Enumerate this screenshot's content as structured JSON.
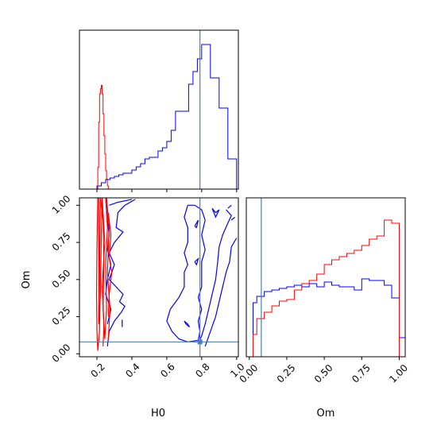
{
  "chart_data": {
    "type": "corner",
    "parameters": [
      "H0",
      "Om"
    ],
    "truths": {
      "H0": 0.79,
      "Om": 0.08
    },
    "truth_color": "#4682b4",
    "series": [
      {
        "name": "",
        "color": "#ff0000"
      },
      {
        "name": "",
        "color": "#0000ff"
      }
    ],
    "panels": {
      "h0_hist": {
        "xlim": [
          0.1,
          1.01
        ],
        "x_ticks": [
          0.2,
          0.4,
          0.6,
          0.8,
          1.0
        ],
        "red": {
          "edges": [
            0.2,
            0.205,
            0.21,
            0.215,
            0.22,
            0.225,
            0.23,
            0.235,
            0.24,
            0.245,
            0.25,
            0.255,
            0.26,
            0.265
          ],
          "values": [
            0.0,
            0.13,
            0.4,
            0.57,
            0.6,
            0.62,
            0.57,
            0.45,
            0.32,
            0.21,
            0.11,
            0.06,
            0.02
          ]
        },
        "blue": {
          "edges": [
            0.1,
            0.125,
            0.15,
            0.175,
            0.2,
            0.225,
            0.25,
            0.275,
            0.3,
            0.325,
            0.35,
            0.375,
            0.4,
            0.425,
            0.45,
            0.475,
            0.5,
            0.525,
            0.55,
            0.575,
            0.6,
            0.625,
            0.65,
            0.675,
            0.7,
            0.725,
            0.75,
            0.775,
            0.8,
            0.825,
            0.85,
            0.875,
            0.9,
            0.925,
            0.95,
            0.975,
            1.0
          ],
          "values": [
            0.0,
            0.0,
            0.0,
            0.0,
            0.02,
            0.04,
            0.06,
            0.07,
            0.08,
            0.09,
            0.1,
            0.1,
            0.12,
            0.14,
            0.16,
            0.19,
            0.2,
            0.2,
            0.24,
            0.26,
            0.3,
            0.37,
            0.49,
            0.49,
            0.49,
            0.66,
            0.74,
            0.82,
            0.91,
            0.91,
            0.7,
            0.7,
            0.51,
            0.51,
            0.19,
            0.19
          ]
        }
      },
      "om_hist": {
        "xlim": [
          -0.02,
          1.04
        ],
        "x_ticks": [
          0.0,
          0.25,
          0.5,
          0.75,
          1.0
        ],
        "tick_labels": [
          "0.00",
          "0.25",
          "0.50",
          "0.75",
          "1.00"
        ],
        "red": {
          "edges": [
            0.0,
            0.025,
            0.05,
            0.1,
            0.15,
            0.2,
            0.25,
            0.3,
            0.35,
            0.4,
            0.45,
            0.5,
            0.55,
            0.6,
            0.65,
            0.7,
            0.75,
            0.8,
            0.85,
            0.9,
            0.95,
            1.0
          ],
          "values": [
            0.0,
            0.14,
            0.24,
            0.28,
            0.32,
            0.35,
            0.36,
            0.42,
            0.46,
            0.48,
            0.52,
            0.58,
            0.61,
            0.63,
            0.65,
            0.67,
            0.7,
            0.74,
            0.76,
            0.86,
            0.84
          ]
        },
        "blue": {
          "edges": [
            0.0,
            0.025,
            0.05,
            0.1,
            0.15,
            0.2,
            0.25,
            0.3,
            0.35,
            0.4,
            0.45,
            0.5,
            0.55,
            0.6,
            0.65,
            0.7,
            0.75,
            0.8,
            0.85,
            0.9,
            0.95,
            1.0,
            1.04
          ],
          "values": [
            0.0,
            0.34,
            0.38,
            0.41,
            0.42,
            0.43,
            0.44,
            0.45,
            0.44,
            0.46,
            0.44,
            0.47,
            0.45,
            0.44,
            0.44,
            0.42,
            0.49,
            0.48,
            0.48,
            0.45,
            0.37,
            0.12
          ]
        }
      },
      "joint": {
        "xlim": [
          0.1,
          1.01
        ],
        "ylim": [
          -0.02,
          1.05
        ],
        "x_ticks": [
          0.2,
          0.4,
          0.6,
          0.8,
          1.0
        ],
        "y_ticks": [
          0.0,
          0.25,
          0.5,
          0.75,
          1.0
        ],
        "y_tick_labels": [
          "0.00",
          "0.25",
          "0.50",
          "0.75",
          "1.00"
        ],
        "red_contours": [
          [
            [
              0.205,
              1.05
            ],
            [
              0.2,
              0.7
            ],
            [
              0.198,
              0.4
            ],
            [
              0.2,
              0.15
            ],
            [
              0.205,
              0.02
            ],
            [
              0.215,
              0.15
            ],
            [
              0.218,
              0.4
            ],
            [
              0.216,
              0.7
            ],
            [
              0.22,
              1.05
            ]
          ],
          [
            [
              0.21,
              1.05
            ],
            [
              0.212,
              0.6
            ],
            [
              0.21,
              0.2
            ],
            [
              0.22,
              0.4
            ],
            [
              0.225,
              0.8
            ],
            [
              0.23,
              1.05
            ]
          ],
          [
            [
              0.22,
              1.05
            ],
            [
              0.235,
              0.9
            ],
            [
              0.24,
              0.6
            ],
            [
              0.235,
              0.3
            ],
            [
              0.245,
              0.1
            ],
            [
              0.255,
              0.3
            ],
            [
              0.25,
              0.6
            ],
            [
              0.26,
              0.85
            ],
            [
              0.25,
              1.05
            ]
          ],
          [
            [
              0.23,
              1.05
            ],
            [
              0.245,
              0.75
            ],
            [
              0.23,
              0.45
            ],
            [
              0.24,
              0.2
            ],
            [
              0.235,
              0.05
            ]
          ],
          [
            [
              0.255,
              1.05
            ],
            [
              0.27,
              0.85
            ],
            [
              0.26,
              0.55
            ],
            [
              0.275,
              0.3
            ],
            [
              0.265,
              0.1
            ]
          ],
          [
            [
              0.265,
              0.95
            ],
            [
              0.28,
              0.8
            ],
            [
              0.27,
              0.65
            ],
            [
              0.285,
              0.55
            ],
            [
              0.27,
              0.4
            ],
            [
              0.265,
              0.25
            ]
          ]
        ],
        "blue_contours": [
          [
            [
              0.27,
              1.0
            ],
            [
              0.32,
              1.02
            ],
            [
              0.4,
              1.04
            ]
          ],
          [
            [
              0.42,
              1.04
            ],
            [
              0.36,
              1.0
            ],
            [
              0.32,
              0.95
            ],
            [
              0.31,
              0.85
            ],
            [
              0.35,
              0.82
            ],
            [
              0.3,
              0.75
            ],
            [
              0.27,
              0.68
            ],
            [
              0.3,
              0.6
            ],
            [
              0.27,
              0.5
            ],
            [
              0.31,
              0.45
            ],
            [
              0.35,
              0.4
            ],
            [
              0.33,
              0.35
            ],
            [
              0.36,
              0.32
            ],
            [
              0.34,
              0.28
            ],
            [
              0.3,
              0.22
            ],
            [
              0.27,
              0.15
            ],
            [
              0.26,
              0.05
            ]
          ],
          [
            [
              0.25,
              1.05
            ],
            [
              0.26,
              0.9
            ],
            [
              0.27,
              0.8
            ],
            [
              0.26,
              0.7
            ],
            [
              0.28,
              0.6
            ],
            [
              0.26,
              0.5
            ],
            [
              0.25,
              0.4
            ],
            [
              0.28,
              0.3
            ],
            [
              0.26,
              0.2
            ]
          ],
          [
            [
              0.345,
              0.23
            ],
            [
              0.345,
              0.18
            ]
          ],
          [
            [
              0.72,
              1.0
            ],
            [
              0.7,
              0.92
            ],
            [
              0.72,
              0.85
            ],
            [
              0.72,
              0.75
            ],
            [
              0.7,
              0.68
            ],
            [
              0.72,
              0.6
            ],
            [
              0.7,
              0.55
            ],
            [
              0.7,
              0.45
            ],
            [
              0.67,
              0.38
            ],
            [
              0.62,
              0.3
            ],
            [
              0.6,
              0.22
            ],
            [
              0.63,
              0.15
            ],
            [
              0.67,
              0.1
            ],
            [
              0.72,
              0.08
            ],
            [
              0.78,
              0.09
            ],
            [
              0.79,
              0.15
            ],
            [
              0.78,
              0.22
            ],
            [
              0.8,
              0.3
            ],
            [
              0.78,
              0.38
            ],
            [
              0.8,
              0.45
            ],
            [
              0.8,
              0.55
            ],
            [
              0.8,
              0.62
            ],
            [
              0.82,
              0.7
            ],
            [
              0.8,
              0.8
            ],
            [
              0.82,
              0.9
            ],
            [
              0.8,
              0.97
            ],
            [
              0.76,
              1.0
            ],
            [
              0.72,
              1.0
            ]
          ],
          [
            [
              0.86,
              0.98
            ],
            [
              0.88,
              0.95
            ],
            [
              0.9,
              0.97
            ],
            [
              0.88,
              0.92
            ],
            [
              0.86,
              0.98
            ]
          ],
          [
            [
              0.76,
              0.86
            ],
            [
              0.78,
              0.9
            ],
            [
              0.77,
              0.85
            ],
            [
              0.76,
              0.86
            ]
          ],
          [
            [
              0.76,
              0.62
            ],
            [
              0.78,
              0.64
            ],
            [
              0.77,
              0.6
            ],
            [
              0.76,
              0.62
            ]
          ],
          [
            [
              0.7,
              0.22
            ],
            [
              0.72,
              0.2
            ],
            [
              0.73,
              0.18
            ],
            [
              0.71,
              0.2
            ],
            [
              0.7,
              0.22
            ]
          ],
          [
            [
              0.78,
              0.07
            ],
            [
              0.8,
              0.12
            ],
            [
              0.82,
              0.2
            ],
            [
              0.84,
              0.3
            ],
            [
              0.86,
              0.4
            ],
            [
              0.88,
              0.5
            ],
            [
              0.89,
              0.6
            ],
            [
              0.9,
              0.72
            ],
            [
              0.92,
              0.8
            ],
            [
              0.95,
              0.88
            ],
            [
              0.97,
              0.93
            ],
            [
              0.94,
              0.97
            ]
          ],
          [
            [
              0.82,
              0.05
            ],
            [
              0.85,
              0.15
            ],
            [
              0.88,
              0.25
            ],
            [
              0.9,
              0.35
            ],
            [
              0.92,
              0.45
            ],
            [
              0.94,
              0.55
            ],
            [
              0.96,
              0.62
            ],
            [
              0.97,
              0.72
            ],
            [
              1.0,
              0.78
            ]
          ],
          [
            [
              0.95,
              0.98
            ],
            [
              0.97,
              1.0
            ]
          ],
          [
            [
              0.97,
              0.9
            ],
            [
              0.99,
              0.92
            ]
          ]
        ],
        "truth_marker_size": 0.03
      }
    },
    "xlabels": {
      "h0": "H0",
      "om": "Om"
    },
    "ylabel": "Om"
  }
}
